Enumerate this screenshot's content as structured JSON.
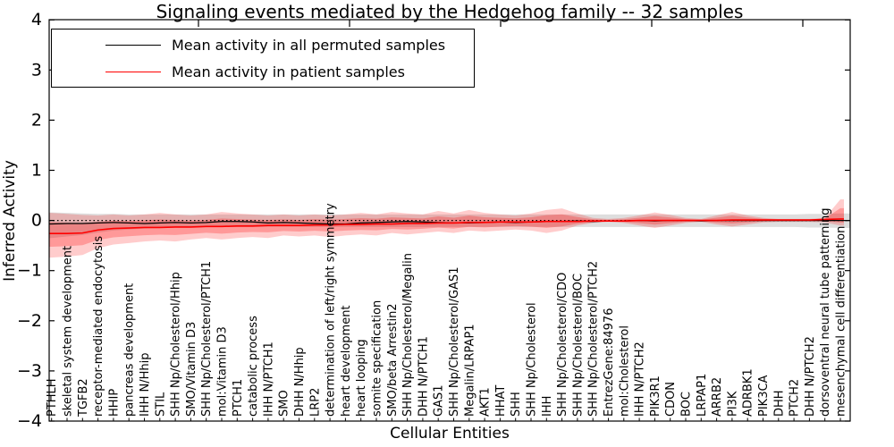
{
  "chart_data": {
    "type": "line",
    "title": "Signaling events mediated by the Hedgehog family -- 32 samples",
    "xlabel": "Cellular Entities",
    "ylabel": "Inferred Activity",
    "ylim": [
      -4,
      4
    ],
    "yticks": [
      "4",
      "3",
      "2",
      "1",
      "0",
      "−1",
      "−2",
      "−3",
      "−4"
    ],
    "ytick_values": [
      4,
      3,
      2,
      1,
      0,
      -1,
      -2,
      -3,
      -4
    ],
    "grid": false,
    "legend_position": "upper left",
    "zero_reference_line": {
      "value": 0,
      "style": "dotted",
      "color": "#000000"
    },
    "categories": [
      "PTHLH",
      "skeletal system development",
      "TGFB2",
      "receptor-mediated endocytosis",
      "HHIP",
      "pancreas development",
      "IHH N/Hhip",
      "STIL",
      "SHH Np/Cholesterol/Hhip",
      "SMO/Vitamin D3",
      "SHH Np/Cholesterol/PTCH1",
      "mol:Vitamin D3",
      "PTCH1",
      "catabolic process",
      "IHH N/PTCH1",
      "SMO",
      "DHH N/Hhip",
      "LRP2",
      "determination of left/right symmetry",
      "heart development",
      "heart looping",
      "somite specification",
      "SMO/beta Arrestin2",
      "SHH Np/Cholesterol/Megalin",
      "DHH N/PTCH1",
      "GAS1",
      "SHH Np/Cholesterol/GAS1",
      "Megalin/LRPAP1",
      "AKT1",
      "HHAT",
      "SHH",
      "SHH Np/Cholesterol",
      "IHH",
      "SHH Np/Cholesterol/CDO",
      "SHH Np/Cholesterol/BOC",
      "SHH Np/Cholesterol/PTCH2",
      "EntrezGene:84976",
      "mol:Cholesterol",
      "IHH N/PTCH2",
      "PIK3R1",
      "CDON",
      "BOC",
      "LRPAP1",
      "ARRB2",
      "PI3K",
      "ADRBK1",
      "PIK3CA",
      "DHH",
      "PTCH2",
      "DHH N/PTCH2",
      "dorsoventral neural tube patterning",
      "mesenchymal cell differentiation"
    ],
    "series": [
      {
        "name": "Mean activity in all permuted samples",
        "color": "#000000",
        "values": [
          -0.07,
          -0.06,
          -0.06,
          -0.05,
          -0.04,
          -0.05,
          -0.06,
          -0.05,
          -0.04,
          -0.05,
          -0.04,
          -0.02,
          -0.02,
          -0.03,
          -0.05,
          -0.04,
          -0.05,
          -0.06,
          -0.07,
          -0.07,
          -0.05,
          -0.04,
          -0.03,
          -0.02,
          -0.03,
          -0.04,
          -0.05,
          -0.05,
          -0.04,
          -0.03,
          -0.04,
          -0.03,
          -0.02,
          -0.02,
          -0.01,
          -0.02,
          -0.01,
          -0.01,
          0,
          -0.01,
          0,
          0,
          -0.01,
          0,
          0,
          0,
          0,
          0,
          0,
          0,
          0,
          0
        ]
      },
      {
        "name": "Mean activity in patient samples",
        "color": "#ff0000",
        "values": [
          -0.26,
          -0.26,
          -0.25,
          -0.19,
          -0.16,
          -0.15,
          -0.14,
          -0.14,
          -0.13,
          -0.13,
          -0.12,
          -0.12,
          -0.11,
          -0.11,
          -0.1,
          -0.1,
          -0.1,
          -0.09,
          -0.09,
          -0.08,
          -0.08,
          -0.07,
          -0.07,
          -0.06,
          -0.06,
          -0.05,
          -0.05,
          -0.04,
          -0.04,
          -0.03,
          -0.03,
          -0.03,
          -0.02,
          -0.02,
          -0.02,
          -0.01,
          -0.01,
          -0.01,
          0,
          0,
          0,
          0,
          0,
          0,
          0.01,
          0.01,
          0.01,
          0.01,
          0.01,
          0.01,
          0.02,
          0.03
        ]
      }
    ],
    "bands": [
      {
        "name": "permuted samples range",
        "color": "rgba(0,0,0,0.13)",
        "upper": [
          0.16,
          0.15,
          0.14,
          0.13,
          0.13,
          0.12,
          0.12,
          0.12,
          0.12,
          0.12,
          0.12,
          0.12,
          0.12,
          0.12,
          0.12,
          0.12,
          0.12,
          0.12,
          0.12,
          0.12,
          0.12,
          0.12,
          0.12,
          0.12,
          0.12,
          0.12,
          0.12,
          0.12,
          0.12,
          0.12,
          0.12,
          0.12,
          0.12,
          0.12,
          0.12,
          0.12,
          0.12,
          0.12,
          0.12,
          0.12,
          0.12,
          0.12,
          0.12,
          0.12,
          0.12,
          0.12,
          0.12,
          0.12,
          0.12,
          0.13,
          0.13,
          0.14
        ],
        "lower": [
          -0.35,
          -0.32,
          -0.29,
          -0.24,
          -0.2,
          -0.18,
          -0.16,
          -0.15,
          -0.14,
          -0.14,
          -0.13,
          -0.13,
          -0.13,
          -0.13,
          -0.13,
          -0.13,
          -0.13,
          -0.13,
          -0.13,
          -0.13,
          -0.13,
          -0.13,
          -0.13,
          -0.13,
          -0.13,
          -0.13,
          -0.13,
          -0.13,
          -0.13,
          -0.13,
          -0.13,
          -0.13,
          -0.13,
          -0.13,
          -0.13,
          -0.13,
          -0.13,
          -0.13,
          -0.13,
          -0.13,
          -0.13,
          -0.13,
          -0.13,
          -0.13,
          -0.13,
          -0.13,
          -0.13,
          -0.13,
          -0.13,
          -0.14,
          -0.14,
          -0.15
        ]
      },
      {
        "name": "patient samples range",
        "color": "rgba(255,0,0,0.20)",
        "inner_color": "rgba(255,0,0,0.25)",
        "inner_fraction": 0.55,
        "upper": [
          0.15,
          0.13,
          0.11,
          0.1,
          0.12,
          0.1,
          0.12,
          0.15,
          0.12,
          0.1,
          0.12,
          0.17,
          0.14,
          0.12,
          0.1,
          0.12,
          0.1,
          0.12,
          0.1,
          0.12,
          0.15,
          0.12,
          0.17,
          0.14,
          0.12,
          0.19,
          0.14,
          0.21,
          0.15,
          0.12,
          0.1,
          0.14,
          0.21,
          0.24,
          0.14,
          0.05,
          0.03,
          0.05,
          0.1,
          0.16,
          0.11,
          0.05,
          0.03,
          0.1,
          0.17,
          0.1,
          0.05,
          0.03,
          0.03,
          0.03,
          0.05,
          0.42
        ],
        "lower": [
          -0.74,
          -0.72,
          -0.69,
          -0.55,
          -0.48,
          -0.45,
          -0.42,
          -0.4,
          -0.42,
          -0.38,
          -0.35,
          -0.38,
          -0.35,
          -0.33,
          -0.35,
          -0.3,
          -0.32,
          -0.3,
          -0.33,
          -0.3,
          -0.28,
          -0.3,
          -0.25,
          -0.28,
          -0.25,
          -0.22,
          -0.25,
          -0.2,
          -0.22,
          -0.2,
          -0.18,
          -0.2,
          -0.25,
          -0.2,
          -0.1,
          -0.05,
          -0.03,
          -0.05,
          -0.1,
          -0.15,
          -0.1,
          -0.05,
          -0.03,
          -0.08,
          -0.12,
          -0.08,
          -0.04,
          -0.03,
          -0.03,
          -0.03,
          -0.04,
          -0.1
        ]
      }
    ]
  }
}
